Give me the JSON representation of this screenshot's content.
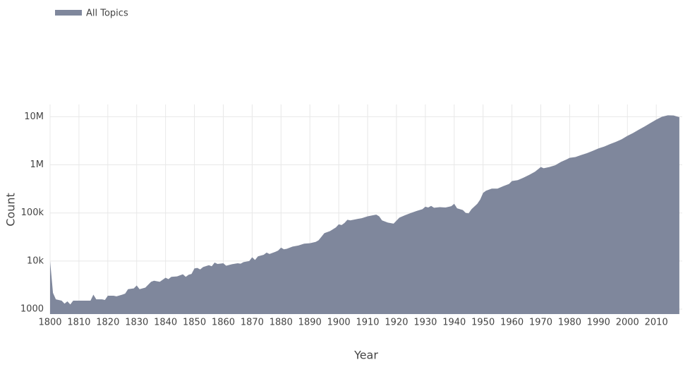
{
  "chart_data": {
    "type": "area",
    "x_label": "Year",
    "y_label": "Count",
    "log_y": true,
    "grid": true,
    "legend": "top-left",
    "x": [
      1800,
      1801,
      1802,
      1804,
      1805,
      1806,
      1807,
      1808,
      1810,
      1812,
      1814,
      1815,
      1816,
      1818,
      1819,
      1820,
      1822,
      1823,
      1825,
      1826,
      1827,
      1829,
      1830,
      1831,
      1833,
      1835,
      1836,
      1838,
      1840,
      1841,
      1842,
      1844,
      1846,
      1847,
      1848,
      1849,
      1850,
      1851,
      1852,
      1853,
      1855,
      1856,
      1857,
      1858,
      1860,
      1861,
      1863,
      1865,
      1866,
      1867,
      1869,
      1870,
      1871,
      1872,
      1874,
      1875,
      1876,
      1878,
      1879,
      1880,
      1881,
      1882,
      1884,
      1886,
      1888,
      1890,
      1892,
      1893,
      1894,
      1895,
      1897,
      1899,
      1900,
      1901,
      1902,
      1903,
      1904,
      1906,
      1908,
      1910,
      1912,
      1913,
      1914,
      1915,
      1917,
      1919,
      1921,
      1923,
      1925,
      1927,
      1929,
      1930,
      1931,
      1932,
      1933,
      1935,
      1937,
      1939,
      1940,
      1941,
      1943,
      1944,
      1945,
      1946,
      1948,
      1949,
      1950,
      1951,
      1953,
      1955,
      1957,
      1959,
      1960,
      1962,
      1964,
      1966,
      1968,
      1970,
      1971,
      1973,
      1975,
      1977,
      1979,
      1980,
      1982,
      1984,
      1986,
      1988,
      1990,
      1992,
      1994,
      1996,
      1998,
      2000,
      2002,
      2004,
      2006,
      2008,
      2010,
      2012,
      2014,
      2016,
      2018
    ],
    "series": [
      {
        "name": "All Topics",
        "color": "#7f879c",
        "values": [
          10000,
          2180,
          1600,
          1500,
          1300,
          1450,
          1250,
          1500,
          1500,
          1500,
          1500,
          2000,
          1600,
          1600,
          1550,
          1900,
          1900,
          1850,
          2000,
          2100,
          2600,
          2700,
          3100,
          2600,
          2800,
          3700,
          3900,
          3700,
          4500,
          4200,
          4700,
          4800,
          5300,
          4700,
          5200,
          5400,
          7000,
          7200,
          6700,
          7500,
          8200,
          7800,
          9300,
          8700,
          9000,
          8000,
          8600,
          9000,
          8800,
          9500,
          10000,
          12000,
          10500,
          12500,
          13500,
          15000,
          14000,
          15500,
          16500,
          19000,
          17500,
          18000,
          20000,
          21000,
          23000,
          23500,
          25000,
          27000,
          32000,
          38000,
          42000,
          50000,
          58000,
          56000,
          62000,
          72000,
          70000,
          74000,
          78000,
          85000,
          90000,
          92000,
          85000,
          70000,
          63000,
          60000,
          80000,
          90000,
          100000,
          110000,
          120000,
          135000,
          130000,
          140000,
          128000,
          132000,
          130000,
          138000,
          155000,
          125000,
          115000,
          100000,
          98000,
          120000,
          155000,
          190000,
          260000,
          290000,
          320000,
          320000,
          360000,
          400000,
          460000,
          480000,
          540000,
          620000,
          720000,
          900000,
          850000,
          900000,
          980000,
          1150000,
          1300000,
          1400000,
          1450000,
          1600000,
          1750000,
          1950000,
          2200000,
          2400000,
          2700000,
          3000000,
          3400000,
          4000000,
          4600000,
          5400000,
          6300000,
          7400000,
          8700000,
          10000000,
          10700000,
          10600000,
          9800000
        ]
      }
    ],
    "xlim": [
      1800,
      2019
    ],
    "xticks": [
      1800,
      1810,
      1820,
      1830,
      1840,
      1850,
      1860,
      1870,
      1880,
      1890,
      1900,
      1910,
      1920,
      1930,
      1940,
      1950,
      1960,
      1970,
      1980,
      1990,
      2000,
      2010
    ],
    "ylim": [
      790,
      18000000
    ],
    "yticks": [
      1000,
      {
        "value": 10000,
        "label": "10k"
      },
      {
        "value": 100000,
        "label": "100k"
      },
      {
        "value": 1000000,
        "label": "1M"
      },
      {
        "value": 10000000,
        "label": "10M"
      }
    ]
  }
}
